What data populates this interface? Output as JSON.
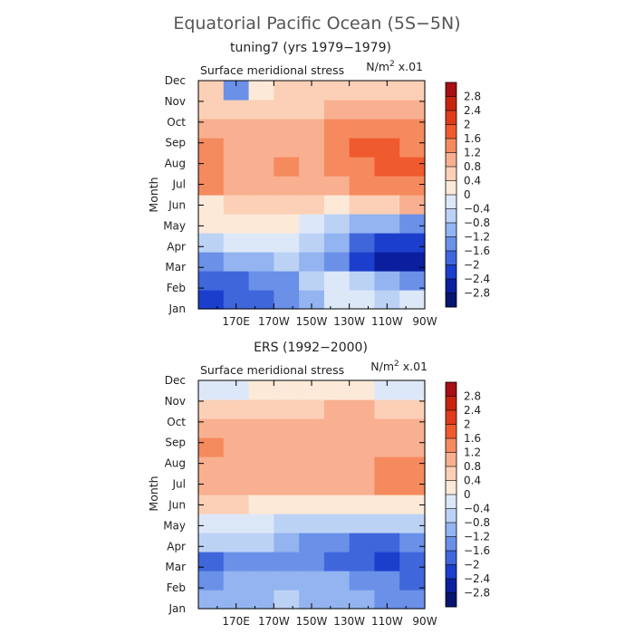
{
  "figure": {
    "title": "Equatorial Pacific Ocean (5S−5N)"
  },
  "colorbar": {
    "levels": [
      "2.8",
      "2.4",
      "2",
      "1.6",
      "1.2",
      "0.8",
      "0.4",
      "0",
      "−0.4",
      "−0.8",
      "−1.2",
      "−1.6",
      "−2",
      "−2.4",
      "−2.8"
    ],
    "colors": [
      "#a50f15",
      "#c7240f",
      "#de3c1c",
      "#ef5a2e",
      "#f58a5e",
      "#f8b090",
      "#fcd0b6",
      "#fde9d8",
      "#dce8f8",
      "#bcd2f5",
      "#93b4f0",
      "#6a90e8",
      "#3f66db",
      "#1c3ecc",
      "#0b1f9e",
      "#06156e"
    ]
  },
  "chart_data": [
    {
      "type": "heatmap",
      "title": "tuning7 (yrs 1979−1979)",
      "subtitle": "Surface meridional stress",
      "units_label": "N/m",
      "units_exp": "2",
      "units_tail": " x.01",
      "ylabel": "Month",
      "x_ticks": [
        "170E",
        "170W",
        "150W",
        "130W",
        "110W",
        "90W"
      ],
      "y_ticks": [
        "Jan",
        "Feb",
        "Mar",
        "Apr",
        "May",
        "Jun",
        "Jul",
        "Aug",
        "Sep",
        "Oct",
        "Nov",
        "Dec"
      ],
      "x_range": [
        150,
        270
      ],
      "grid_cols": 9,
      "z": [
        [
          -2.2,
          -1.9,
          -1.6,
          -1.5,
          -1.0,
          -0.4,
          -0.3,
          -0.5,
          -0.3
        ],
        [
          -2.0,
          -1.6,
          -1.3,
          -1.2,
          -0.8,
          -0.3,
          -0.8,
          -1.1,
          -1.2
        ],
        [
          -1.4,
          -1.1,
          -0.9,
          -0.8,
          -1.0,
          -1.2,
          -2.1,
          -2.5,
          -2.8
        ],
        [
          -0.7,
          -0.4,
          -0.3,
          -0.2,
          -0.6,
          -1.0,
          -1.9,
          -2.2,
          -2.4
        ],
        [
          0.0,
          0.3,
          0.3,
          0.2,
          -0.2,
          -0.6,
          -1.0,
          -1.1,
          -1.2
        ],
        [
          0.3,
          0.5,
          0.6,
          0.6,
          0.4,
          0.3,
          0.4,
          0.6,
          0.8
        ],
        [
          1.4,
          0.9,
          0.9,
          1.0,
          0.8,
          0.9,
          1.2,
          1.3,
          1.5
        ],
        [
          1.5,
          1.0,
          1.0,
          1.3,
          0.9,
          1.2,
          1.5,
          1.6,
          1.7
        ],
        [
          1.2,
          1.0,
          0.8,
          0.9,
          1.0,
          1.5,
          1.6,
          1.6,
          1.5
        ],
        [
          0.9,
          0.9,
          0.8,
          0.8,
          0.8,
          1.2,
          1.4,
          1.5,
          1.3
        ],
        [
          0.7,
          0.6,
          0.5,
          0.6,
          0.6,
          0.9,
          1.1,
          1.0,
          0.8
        ],
        [
          0.4,
          -1.4,
          0.2,
          0.4,
          0.4,
          0.5,
          0.6,
          0.5,
          0.5
        ]
      ]
    },
    {
      "type": "heatmap",
      "title": "ERS (1992−2000)",
      "subtitle": "Surface meridional stress",
      "units_label": "N/m",
      "units_exp": "2",
      "units_tail": " x.01",
      "ylabel": "Month",
      "x_ticks": [
        "170E",
        "170W",
        "150W",
        "130W",
        "110W",
        "90W"
      ],
      "y_ticks": [
        "Jan",
        "Feb",
        "Mar",
        "Apr",
        "May",
        "Jun",
        "Jul",
        "Aug",
        "Sep",
        "Oct",
        "Nov",
        "Dec"
      ],
      "x_range": [
        150,
        270
      ],
      "grid_cols": 9,
      "z": [
        [
          -1.0,
          -0.9,
          -0.9,
          -0.8,
          -0.9,
          -1.0,
          -1.1,
          -1.3,
          -1.5
        ],
        [
          -1.3,
          -1.1,
          -1.0,
          -0.9,
          -1.0,
          -1.1,
          -1.3,
          -1.5,
          -1.6
        ],
        [
          -1.6,
          -1.3,
          -1.2,
          -1.2,
          -1.4,
          -1.6,
          -1.9,
          -2.1,
          -1.9
        ],
        [
          -0.7,
          -0.6,
          -0.8,
          -1.0,
          -1.3,
          -1.5,
          -1.6,
          -1.6,
          -1.4
        ],
        [
          -0.3,
          -0.3,
          -0.4,
          -0.5,
          -0.6,
          -0.7,
          -0.7,
          -0.6,
          -0.5
        ],
        [
          0.5,
          0.4,
          0.3,
          0.3,
          0.3,
          0.2,
          0.2,
          0.2,
          0.3
        ],
        [
          0.9,
          0.9,
          0.8,
          0.9,
          1.0,
          1.0,
          1.0,
          1.3,
          1.4
        ],
        [
          1.1,
          1.0,
          0.9,
          1.0,
          1.0,
          1.0,
          1.0,
          1.2,
          1.3
        ],
        [
          1.2,
          1.0,
          0.9,
          1.0,
          1.0,
          1.0,
          0.9,
          1.0,
          1.1
        ],
        [
          0.9,
          0.9,
          0.9,
          0.9,
          0.9,
          0.9,
          1.0,
          1.0,
          1.0
        ],
        [
          0.4,
          0.5,
          0.6,
          0.6,
          0.6,
          0.8,
          0.8,
          0.7,
          0.6
        ],
        [
          -0.3,
          -0.1,
          0.0,
          0.1,
          0.1,
          0.0,
          0.0,
          -0.1,
          -0.1
        ]
      ]
    }
  ]
}
